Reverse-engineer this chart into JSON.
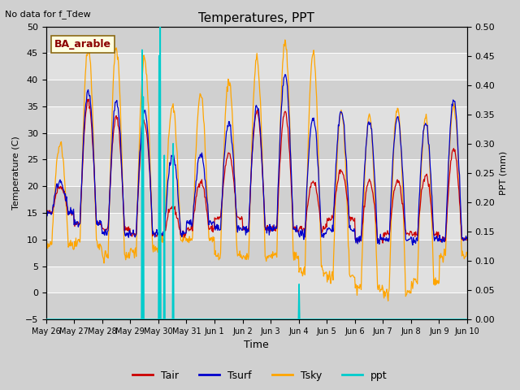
{
  "title": "Temperatures, PPT",
  "subtitle": "No data for f_Tdew",
  "station_label": "BA_arable",
  "xlabel": "Time",
  "ylabel_left": "Temperature (C)",
  "ylabel_right": "PPT (mm)",
  "ylim_left": [
    -5,
    50
  ],
  "ylim_right": [
    0.0,
    0.5
  ],
  "colors": {
    "Tair": "#cc0000",
    "Tsurf": "#0000cc",
    "Tsky": "#ffa500",
    "ppt": "#00cccc"
  },
  "x_tick_labels": [
    "May 26",
    "May 27",
    "May 28",
    "May 29",
    "May 30",
    "May 31",
    "Jun 1",
    "Jun 2",
    "Jun 3",
    "Jun 4",
    "Jun 5",
    "Jun 6",
    "Jun 7",
    "Jun 8",
    "Jun 9",
    "Jun 10"
  ],
  "n_days": 15,
  "points_per_day": 48
}
